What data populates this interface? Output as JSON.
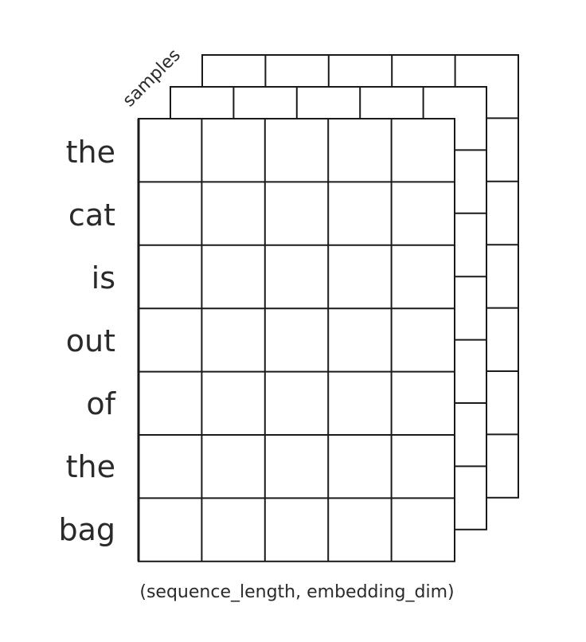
{
  "diagram": {
    "tokens": [
      "the",
      "cat",
      "is",
      "out",
      "of",
      "the",
      "bag"
    ],
    "samples_label": "samples",
    "caption": "(sequence_length, embedding_dim)",
    "columns": 5,
    "sheets": 3
  }
}
